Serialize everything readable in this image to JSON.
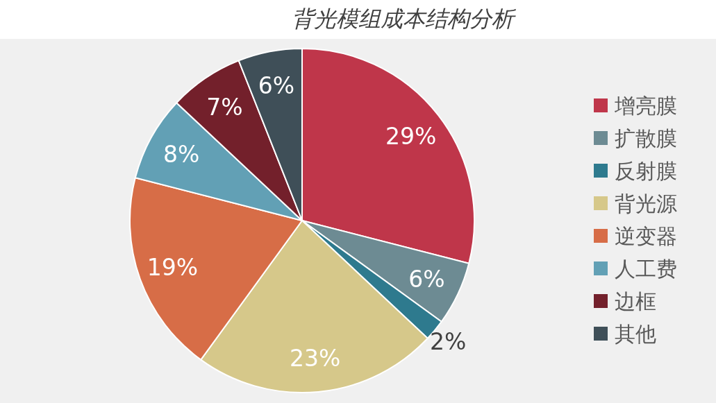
{
  "chart_data": {
    "type": "pie",
    "title": "背光模组成本结构分析",
    "categories": [
      "增亮膜",
      "扩散膜",
      "反射膜",
      "背光源",
      "逆变器",
      "人工费",
      "边框",
      "其他"
    ],
    "values": [
      29,
      6,
      2,
      23,
      19,
      8,
      7,
      6
    ],
    "colors": [
      "#bf364a",
      "#6d8b93",
      "#2e7a8e",
      "#d6c88a",
      "#d76d47",
      "#62a0b5",
      "#73202b",
      "#3f4f58"
    ],
    "value_labels": [
      "29%",
      "6%",
      "2%",
      "23%",
      "19%",
      "8%",
      "7%",
      "6%"
    ],
    "legend": "right"
  }
}
